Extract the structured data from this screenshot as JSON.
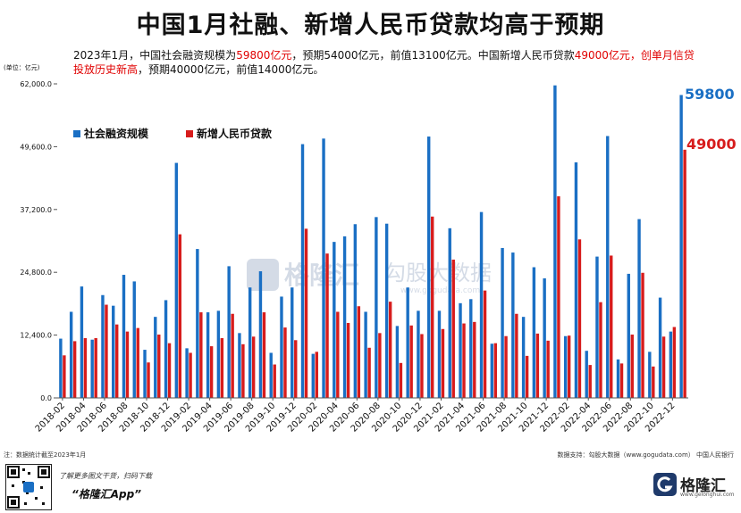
{
  "title": "中国1月社融、新增人民币贷款均高于预期",
  "subtitle": {
    "seg1": "2023年1月，中国社会融资规模为",
    "seg2_red": "59800亿元",
    "seg3": "，预期54000亿元，前值13100亿元。中国新增人民币贷款",
    "seg4_red": "49000亿元，创单月信贷投放历史新高",
    "seg5": "，预期40000亿元，前值14000亿元。"
  },
  "watermark": {
    "brand": "格隆汇",
    "partner": "勾股大数据",
    "url": "www.gogudata.com"
  },
  "footer": {
    "note": "注：数据统计截至2023年1月",
    "source": "数据支持：勾股大数据（www.gogudata.com） 中国人民银行",
    "promo": "了解更多图文干货，扫码下载",
    "app": "“格隆汇App”",
    "brand": "格隆汇",
    "brand_url": "www.gelonghui.com"
  },
  "colors": {
    "social_financing": "#1a6fc4",
    "rmb_loans": "#d71c1c",
    "highlight_red": "#e00000"
  },
  "chart_data": {
    "type": "bar",
    "unit_label": "(单位：亿元)",
    "ylim": [
      0,
      62000
    ],
    "yticks": [
      "0.0",
      "12,400.0",
      "24,800.0",
      "37,200.0",
      "49,600.0",
      "62,000.0"
    ],
    "xtick_labels": [
      "2018-02",
      "2018-04",
      "2018-06",
      "2018-08",
      "2018-10",
      "2018-12",
      "2019-02",
      "2019-04",
      "2019-06",
      "2019-08",
      "2019-10",
      "2019-12",
      "2020-02",
      "2020-04",
      "2020-06",
      "2020-08",
      "2020-10",
      "2020-12",
      "2021-02",
      "2021-04",
      "2021-06",
      "2021-08",
      "2021-10",
      "2021-12",
      "2022-02",
      "2022-04",
      "2022-06",
      "2022-08",
      "2022-10",
      "2022-12"
    ],
    "categories": [
      "2018-02",
      "2018-03",
      "2018-04",
      "2018-05",
      "2018-06",
      "2018-07",
      "2018-08",
      "2018-09",
      "2018-10",
      "2018-11",
      "2018-12",
      "2019-01",
      "2019-02",
      "2019-03",
      "2019-04",
      "2019-05",
      "2019-06",
      "2019-07",
      "2019-08",
      "2019-09",
      "2019-10",
      "2019-11",
      "2019-12",
      "2020-01",
      "2020-02",
      "2020-03",
      "2020-04",
      "2020-05",
      "2020-06",
      "2020-07",
      "2020-08",
      "2020-09",
      "2020-10",
      "2020-11",
      "2020-12",
      "2021-01",
      "2021-02",
      "2021-03",
      "2021-04",
      "2021-05",
      "2021-06",
      "2021-07",
      "2021-08",
      "2021-09",
      "2021-10",
      "2021-11",
      "2021-12",
      "2022-01",
      "2022-02",
      "2022-03",
      "2022-04",
      "2022-05",
      "2022-06",
      "2022-07",
      "2022-08",
      "2022-09",
      "2022-10",
      "2022-11",
      "2022-12",
      "2023-01"
    ],
    "series": [
      {
        "name": "社会融资规模",
        "values": [
          11700,
          17000,
          22000,
          11500,
          20300,
          18200,
          24300,
          23000,
          9500,
          16000,
          19300,
          46400,
          9800,
          29400,
          16900,
          17200,
          26000,
          12800,
          21800,
          25000,
          8900,
          20000,
          21800,
          50100,
          8700,
          51200,
          30800,
          31900,
          34300,
          17000,
          35700,
          34400,
          14200,
          21800,
          17200,
          51600,
          17200,
          33500,
          18700,
          19500,
          36700,
          10700,
          29600,
          28700,
          16000,
          25800,
          23600,
          61700,
          12200,
          46500,
          9300,
          27900,
          51700,
          7600,
          24500,
          35300,
          9100,
          19800,
          13100,
          59800
        ]
      },
      {
        "name": "新增人民币贷款",
        "values": [
          8400,
          11200,
          11800,
          11800,
          18400,
          14500,
          13100,
          13800,
          7000,
          12500,
          10800,
          32300,
          8900,
          16900,
          10200,
          11800,
          16600,
          10600,
          12100,
          16900,
          6600,
          13900,
          11400,
          33400,
          9100,
          28500,
          17000,
          14800,
          18100,
          9900,
          12800,
          19000,
          6900,
          14300,
          12600,
          35800,
          13600,
          27300,
          14700,
          15000,
          21200,
          10800,
          12200,
          16600,
          8300,
          12700,
          11300,
          39800,
          12300,
          31300,
          6500,
          18900,
          28100,
          6800,
          12500,
          24700,
          6200,
          12100,
          14000,
          49000
        ]
      }
    ],
    "annotations": [
      "59800",
      "49000"
    ]
  }
}
